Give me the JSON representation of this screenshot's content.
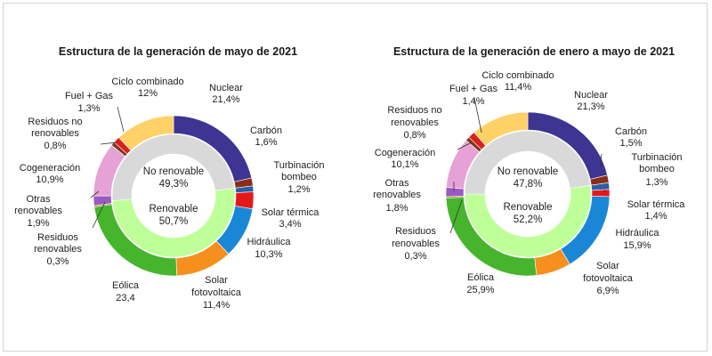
{
  "chart_data": [
    {
      "type": "pie",
      "variant": "nested-donut",
      "title": "Estructura de la generación de mayo de 2021",
      "inner_ring": [
        {
          "name": "No renovable",
          "value_label": "49,3%",
          "value": 49.3,
          "color": "#d9d9d9"
        },
        {
          "name": "Renovable",
          "value_label": "50,7%",
          "value": 50.7,
          "color": "#bfff99"
        }
      ],
      "outer_ring": [
        {
          "name": "Nuclear",
          "value_label": "21,4%",
          "value": 21.4,
          "color": "#3d3591"
        },
        {
          "name": "Carbón",
          "value_label": "1,6%",
          "value": 1.6,
          "color": "#8a2d1a"
        },
        {
          "name": "Turbinación bombeo",
          "value_label": "1,2%",
          "value": 1.2,
          "color": "#2a5fa8"
        },
        {
          "name": "Solar térmica",
          "value_label": "3,4%",
          "value": 3.4,
          "color": "#e4181b"
        },
        {
          "name": "Hidráulica",
          "value_label": "10,3%",
          "value": 10.3,
          "color": "#1a87d6"
        },
        {
          "name": "Solar fotovoltaica",
          "value_label": "11,4%",
          "value": 11.4,
          "color": "#f5901e"
        },
        {
          "name": "Eólica",
          "value_label": "23,4",
          "value": 23.4,
          "color": "#46b52d"
        },
        {
          "name": "Residuos renovables",
          "value_label": "0,3%",
          "value": 0.3,
          "color": "#9a8a14"
        },
        {
          "name": "Otras renovables",
          "value_label": "1,9%",
          "value": 1.9,
          "color": "#9b59c4"
        },
        {
          "name": "Cogeneración",
          "value_label": "10,9%",
          "value": 10.9,
          "color": "#e6a2d6"
        },
        {
          "name": "Residuos no renovables",
          "value_label": "0,8%",
          "value": 0.8,
          "color": "#7a3a1c"
        },
        {
          "name": "Fuel + Gas",
          "value_label": "1,3%",
          "value": 1.3,
          "color": "#d9201e"
        },
        {
          "name": "Ciclo combinado",
          "value_label": "12%",
          "value": 12.0,
          "color": "#ffd166"
        }
      ]
    },
    {
      "type": "pie",
      "variant": "nested-donut",
      "title": "Estructura de la generación de enero a mayo de 2021",
      "inner_ring": [
        {
          "name": "No renovable",
          "value_label": "47,8%",
          "value": 47.8,
          "color": "#d9d9d9"
        },
        {
          "name": "Renovable",
          "value_label": "52,2%",
          "value": 52.2,
          "color": "#bfff99"
        }
      ],
      "outer_ring": [
        {
          "name": "Nuclear",
          "value_label": "21,3%",
          "value": 21.3,
          "color": "#3d3591"
        },
        {
          "name": "Carbón",
          "value_label": "1,5%",
          "value": 1.5,
          "color": "#8a2d1a"
        },
        {
          "name": "Turbinación bombeo",
          "value_label": "1,3%",
          "value": 1.3,
          "color": "#2a5fa8"
        },
        {
          "name": "Solar térmica",
          "value_label": "1,4%",
          "value": 1.4,
          "color": "#e4181b"
        },
        {
          "name": "Hidráulica",
          "value_label": "15,9%",
          "value": 15.9,
          "color": "#1a87d6"
        },
        {
          "name": "Solar fotovoltaica",
          "value_label": "6,9%",
          "value": 6.9,
          "color": "#f5901e"
        },
        {
          "name": "Eólica",
          "value_label": "25,9%",
          "value": 25.9,
          "color": "#46b52d"
        },
        {
          "name": "Residuos renovables",
          "value_label": "0,3%",
          "value": 0.3,
          "color": "#9a8a14"
        },
        {
          "name": "Otras renovables",
          "value_label": "1,8%",
          "value": 1.8,
          "color": "#9b59c4"
        },
        {
          "name": "Cogeneración",
          "value_label": "10,1%",
          "value": 10.1,
          "color": "#e6a2d6"
        },
        {
          "name": "Residuos no renovables",
          "value_label": "0,8%",
          "value": 0.8,
          "color": "#7a3a1c"
        },
        {
          "name": "Fuel + Gas",
          "value_label": "1,4%",
          "value": 1.4,
          "color": "#d9201e"
        },
        {
          "name": "Ciclo combinado",
          "value_label": "11,4%",
          "value": 11.4,
          "color": "#ffd166"
        }
      ]
    }
  ]
}
